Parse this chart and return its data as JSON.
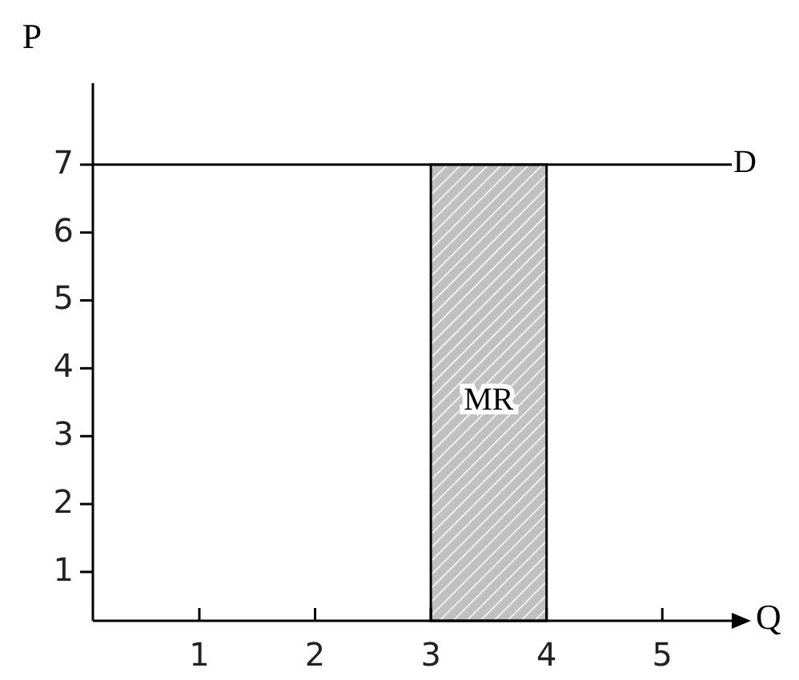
{
  "chart_data": {
    "type": "line",
    "xlabel": "Q",
    "ylabel": "P",
    "xlim": [
      0.08,
      5.6
    ],
    "ylim": [
      0.28,
      8.2
    ],
    "xticks": [
      1,
      2,
      3,
      4,
      5
    ],
    "yticks": [
      1,
      2,
      3,
      4,
      5,
      6,
      7
    ],
    "grid": false,
    "marker": "none",
    "line_style": "solid",
    "series": [
      {
        "name": "D",
        "color": "#000000",
        "x": [
          0.08,
          5.6
        ],
        "values": [
          7,
          7
        ]
      },
      {
        "name": "MR",
        "type": "area",
        "color": "#c0c0c0",
        "x": [
          3,
          4
        ],
        "values": [
          7,
          7
        ]
      }
    ]
  }
}
